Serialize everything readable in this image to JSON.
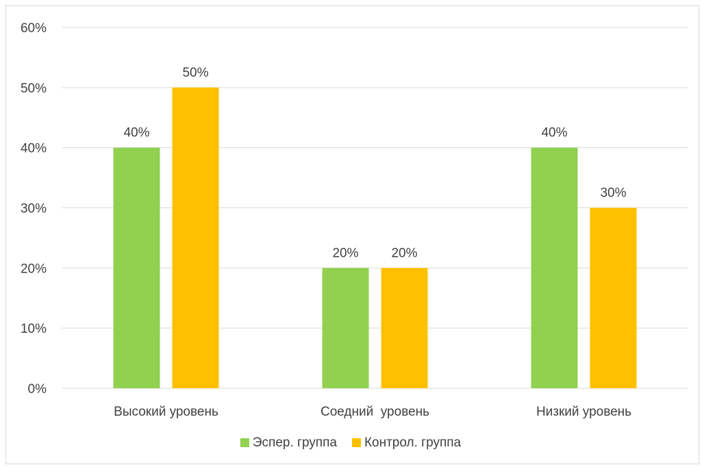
{
  "chart_data": {
    "type": "bar",
    "title": "",
    "xlabel": "",
    "ylabel": "",
    "categories": [
      "Высокий уровень",
      "Соедний  уровень",
      "Низкий уровень"
    ],
    "series": [
      {
        "name": "Эспер. группа",
        "values": [
          0.4,
          0.2,
          0.4
        ],
        "color": "#92d050",
        "labels": [
          "40%",
          "20%",
          "40%"
        ]
      },
      {
        "name": "Контрол. группа",
        "values": [
          0.5,
          0.2,
          0.3
        ],
        "color": "#ffc000",
        "labels": [
          "50%",
          "20%",
          "30%"
        ]
      }
    ],
    "ylim": [
      0,
      0.6
    ],
    "yticks": [
      0,
      0.1,
      0.2,
      0.3,
      0.4,
      0.5,
      0.6
    ],
    "ytick_labels": [
      "0%",
      "10%",
      "20%",
      "30%",
      "40%",
      "50%",
      "60%"
    ],
    "grid": true,
    "legend_position": "bottom",
    "data_labels": true
  }
}
